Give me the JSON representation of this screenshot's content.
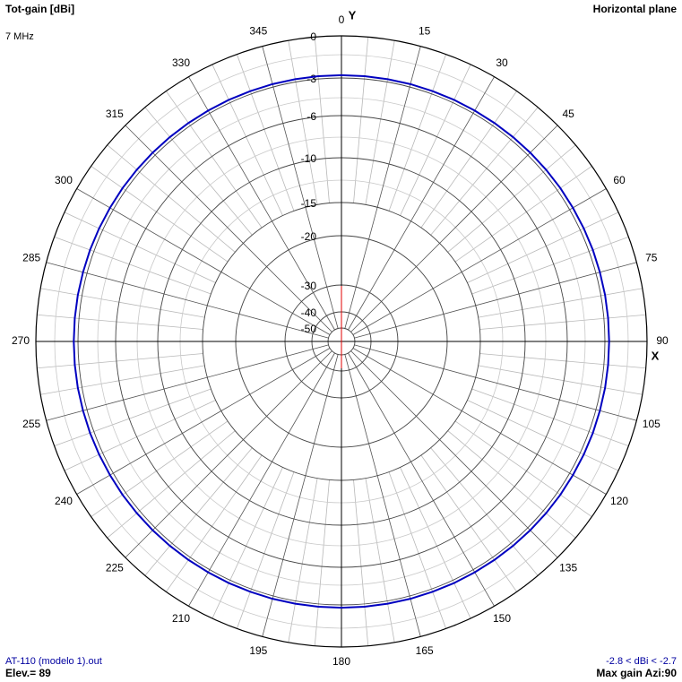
{
  "chart_data": {
    "type": "polar",
    "title": "Tot-gain [dBi]",
    "subtitle": "7 MHz",
    "plane": "Horizontal plane",
    "x_axis_label": "X",
    "y_axis_label": "Y",
    "file": "AT-110 (modelo 1).out",
    "range_label": "-2.8 < dBi < -2.7",
    "elevation": "Elev.= 89",
    "max_gain": "Max gain Azi:90",
    "rlim": [
      -50,
      0
    ],
    "rticks": [
      0,
      -3,
      -6,
      -10,
      -15,
      -20,
      -30,
      -40,
      -50
    ],
    "angles": [
      0,
      5,
      10,
      15,
      20,
      25,
      30,
      35,
      40,
      45,
      50,
      55,
      60,
      65,
      70,
      75,
      80,
      85,
      90,
      95,
      100,
      105,
      110,
      115,
      120,
      125,
      130,
      135,
      140,
      145,
      150,
      155,
      160,
      165,
      170,
      175,
      180,
      185,
      190,
      195,
      200,
      205,
      210,
      215,
      220,
      225,
      230,
      235,
      240,
      245,
      250,
      255,
      260,
      265,
      270,
      275,
      280,
      285,
      290,
      295,
      300,
      305,
      310,
      315,
      320,
      325,
      330,
      335,
      340,
      345,
      350,
      355
    ],
    "angle_ticks": [
      0,
      15,
      30,
      45,
      60,
      75,
      90,
      105,
      120,
      135,
      150,
      165,
      180,
      195,
      210,
      225,
      240,
      255,
      270,
      285,
      300,
      315,
      330,
      345
    ],
    "series": [
      {
        "color": "#0000c0",
        "values": [
          -2.8,
          -2.8,
          -2.8,
          -2.79,
          -2.79,
          -2.78,
          -2.78,
          -2.77,
          -2.76,
          -2.75,
          -2.74,
          -2.73,
          -2.73,
          -2.72,
          -2.71,
          -2.71,
          -2.7,
          -2.7,
          -2.7,
          -2.7,
          -2.7,
          -2.71,
          -2.71,
          -2.72,
          -2.73,
          -2.73,
          -2.74,
          -2.75,
          -2.76,
          -2.77,
          -2.78,
          -2.78,
          -2.79,
          -2.79,
          -2.8,
          -2.8,
          -2.8,
          -2.8,
          -2.8,
          -2.79,
          -2.79,
          -2.78,
          -2.78,
          -2.77,
          -2.76,
          -2.75,
          -2.74,
          -2.73,
          -2.73,
          -2.72,
          -2.71,
          -2.71,
          -2.7,
          -2.7,
          -2.7,
          -2.7,
          -2.7,
          -2.71,
          -2.71,
          -2.72,
          -2.73,
          -2.73,
          -2.74,
          -2.75,
          -2.76,
          -2.77,
          -2.78,
          -2.78,
          -2.79,
          -2.79,
          -2.8,
          -2.8
        ]
      }
    ]
  }
}
